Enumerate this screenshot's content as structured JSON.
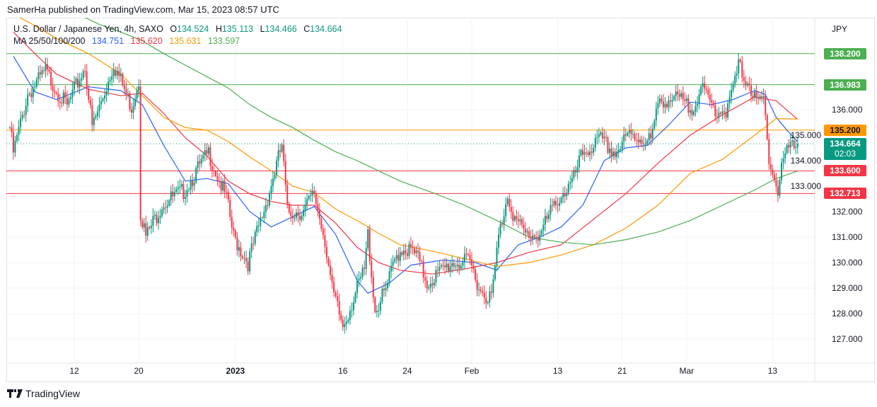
{
  "header": {
    "published": "SamerHa published on TradingView.com, Mar 15, 2023 08:57 UTC"
  },
  "legend": {
    "symbol": "U.S. Dollar / Japanese Yen, 4h, SAXO",
    "open_label": "O",
    "open": "134.524",
    "high_label": "H",
    "high": "135.113",
    "low_label": "L",
    "low": "134.466",
    "close_label": "C",
    "close": "134.664",
    "ma_label": "MA 25/50/100/200",
    "ma_values": [
      "134.751",
      "135.620",
      "135.631",
      "133.597"
    ]
  },
  "footer": {
    "brand": "TradingView"
  },
  "colors": {
    "up": "#089981",
    "down": "#F23645",
    "ma25": "#2962FF",
    "ma50": "#F23645",
    "ma100": "#FF9800",
    "ma200": "#4CAF50",
    "grid": "#f0f3fa"
  },
  "chart_data": {
    "type": "candlestick",
    "title": "U.S. Dollar / Japanese Yen, 4h, SAXO",
    "currency_label": "JPY",
    "ylim": [
      126.3,
      139.7
    ],
    "y_ticks": [
      "127.000",
      "128.000",
      "129.000",
      "130.000",
      "131.000",
      "132.000",
      "133.000",
      "134.000",
      "135.000",
      "136.000"
    ],
    "x_ticks": [
      {
        "label": "12",
        "date": "2022-12-12"
      },
      {
        "label": "20",
        "date": "2022-12-20"
      },
      {
        "label": "2023",
        "date": "2023-01-02"
      },
      {
        "label": "16",
        "date": "2023-01-16"
      },
      {
        "label": "24",
        "date": "2023-01-24"
      },
      {
        "label": "Feb",
        "date": "2023-02-01"
      },
      {
        "label": "13",
        "date": "2023-02-13"
      },
      {
        "label": "21",
        "date": "2023-02-21"
      },
      {
        "label": "Mar",
        "date": "2023-03-01"
      },
      {
        "label": "13",
        "date": "2023-03-13"
      }
    ],
    "grid": true,
    "price_path": [
      [
        "2022-12-02T00",
        135.3
      ],
      [
        "2022-12-02T08",
        134.3
      ],
      [
        "2022-12-05T16",
        136.6
      ],
      [
        "2022-12-07T08",
        137.5
      ],
      [
        "2022-12-09T08",
        136.1
      ],
      [
        "2022-12-13T00",
        137.7
      ],
      [
        "2022-12-13T16",
        135.3
      ],
      [
        "2022-12-14T16",
        136.5
      ],
      [
        "2022-12-15T16",
        137.8
      ],
      [
        "2022-12-19T08",
        136.1
      ],
      [
        "2022-12-20T00",
        137.2
      ],
      [
        "2022-12-20T04",
        132.0
      ],
      [
        "2022-12-20T16",
        131.0
      ],
      [
        "2022-12-22T04",
        132.3
      ],
      [
        "2022-12-26T04",
        132.8
      ],
      [
        "2022-12-28T12",
        134.3
      ],
      [
        "2022-12-30T04",
        132.5
      ],
      [
        "2022-12-30T20",
        131.0
      ],
      [
        "2023-01-03T04",
        130.0
      ],
      [
        "2023-01-04T20",
        132.3
      ],
      [
        "2023-01-06T08",
        134.6
      ],
      [
        "2023-01-06T20",
        132.0
      ],
      [
        "2023-01-10T08",
        132.0
      ],
      [
        "2023-01-11T08",
        132.7
      ],
      [
        "2023-01-12T08",
        130.9
      ],
      [
        "2023-01-13T00",
        128.9
      ],
      [
        "2023-01-16T00",
        127.5
      ],
      [
        "2023-01-17T00",
        128.6
      ],
      [
        "2023-01-18T00",
        129.7
      ],
      [
        "2023-01-18T08",
        131.1
      ],
      [
        "2023-01-19T00",
        128.1
      ],
      [
        "2023-01-20T00",
        128.9
      ],
      [
        "2023-01-23T00",
        130.3
      ],
      [
        "2023-01-23T16",
        130.6
      ],
      [
        "2023-01-24T20",
        130.3
      ],
      [
        "2023-01-25T20",
        129.2
      ],
      [
        "2023-01-30T04",
        130.0
      ],
      [
        "2023-01-31T20",
        130.0
      ],
      [
        "2023-02-01T20",
        128.9
      ],
      [
        "2023-02-02T20",
        128.6
      ],
      [
        "2023-02-03T12",
        131.0
      ],
      [
        "2023-02-06T08",
        132.7
      ],
      [
        "2023-02-07T00",
        131.7
      ],
      [
        "2023-02-08T00",
        131.1
      ],
      [
        "2023-02-09T08",
        131.1
      ],
      [
        "2023-02-13T00",
        132.5
      ],
      [
        "2023-02-14T08",
        133.1
      ],
      [
        "2023-02-15T08",
        134.3
      ],
      [
        "2023-02-17T00",
        134.8
      ],
      [
        "2023-02-20T08",
        134.3
      ],
      [
        "2023-02-21T16",
        135.0
      ],
      [
        "2023-02-23T16",
        134.8
      ],
      [
        "2023-02-24T12",
        136.4
      ],
      [
        "2023-02-28T08",
        136.4
      ],
      [
        "2023-03-01T08",
        136.0
      ],
      [
        "2023-03-02T08",
        136.8
      ],
      [
        "2023-03-03T16",
        136.0
      ],
      [
        "2023-03-06T20",
        136.0
      ],
      [
        "2023-03-07T20",
        137.7
      ],
      [
        "2023-03-08T20",
        137.0
      ],
      [
        "2023-03-09T12",
        136.2
      ],
      [
        "2023-03-10T04",
        136.4
      ],
      [
        "2023-03-10T16",
        134.2
      ],
      [
        "2023-03-13T00",
        133.6
      ],
      [
        "2023-03-13T12",
        132.7
      ],
      [
        "2023-03-13T20",
        133.9
      ],
      [
        "2023-03-14T12",
        134.5
      ],
      [
        "2023-03-15T08",
        134.664
      ]
    ],
    "moving_averages": [
      {
        "name": "MA 25",
        "color": "#2962FF",
        "points": [
          [
            "2022-12-02",
            138.1
          ],
          [
            "2022-12-06",
            136.7
          ],
          [
            "2022-12-08",
            136.4
          ],
          [
            "2022-12-13",
            136.9
          ],
          [
            "2022-12-16",
            136.75
          ],
          [
            "2022-12-20",
            136.2
          ],
          [
            "2022-12-22",
            134.6
          ],
          [
            "2022-12-26",
            133.2
          ],
          [
            "2022-12-28",
            133.3
          ],
          [
            "2022-12-30",
            133.1
          ],
          [
            "2023-01-03",
            132.0
          ],
          [
            "2023-01-05",
            131.4
          ],
          [
            "2023-01-09",
            131.8
          ],
          [
            "2023-01-11",
            132.2
          ],
          [
            "2023-01-13",
            131.1
          ],
          [
            "2023-01-17",
            129.3
          ],
          [
            "2023-01-18",
            128.8
          ],
          [
            "2023-01-20",
            129.2
          ],
          [
            "2023-01-24",
            129.9
          ],
          [
            "2023-01-27",
            130.1
          ],
          [
            "2023-02-01",
            130.0
          ],
          [
            "2023-02-03",
            129.7
          ],
          [
            "2023-02-07",
            130.7
          ],
          [
            "2023-02-09",
            131.0
          ],
          [
            "2023-02-13",
            131.4
          ],
          [
            "2023-02-15",
            132.25
          ],
          [
            "2023-02-17",
            134.0
          ],
          [
            "2023-02-21",
            134.5
          ],
          [
            "2023-02-23",
            134.6
          ],
          [
            "2023-02-27",
            135.4
          ],
          [
            "2023-03-01",
            136.3
          ],
          [
            "2023-03-03",
            136.2
          ],
          [
            "2023-03-07",
            136.4
          ],
          [
            "2023-03-09",
            136.75
          ],
          [
            "2023-03-10",
            136.6
          ],
          [
            "2023-03-13",
            135.7
          ],
          [
            "2023-03-14",
            135.2
          ],
          [
            "2023-03-15",
            134.751
          ]
        ]
      },
      {
        "name": "MA 50",
        "color": "#F23645",
        "points": [
          [
            "2022-12-02",
            139.05
          ],
          [
            "2022-12-06",
            138.2
          ],
          [
            "2022-12-08",
            137.4
          ],
          [
            "2022-12-13",
            136.8
          ],
          [
            "2022-12-16",
            136.55
          ],
          [
            "2022-12-20",
            136.65
          ],
          [
            "2022-12-22",
            135.85
          ],
          [
            "2022-12-26",
            134.9
          ],
          [
            "2022-12-28",
            134.2
          ],
          [
            "2022-12-30",
            133.2
          ],
          [
            "2023-01-03",
            132.7
          ],
          [
            "2023-01-05",
            132.4
          ],
          [
            "2023-01-09",
            132.25
          ],
          [
            "2023-01-11",
            132.25
          ],
          [
            "2023-01-13",
            131.55
          ],
          [
            "2023-01-17",
            130.6
          ],
          [
            "2023-01-19",
            130.0
          ],
          [
            "2023-01-23",
            129.7
          ],
          [
            "2023-01-26",
            129.55
          ],
          [
            "2023-01-31",
            129.75
          ],
          [
            "2023-02-03",
            130.0
          ],
          [
            "2023-02-08",
            130.4
          ],
          [
            "2023-02-13",
            130.7
          ],
          [
            "2023-02-16",
            131.7
          ],
          [
            "2023-02-21",
            132.7
          ],
          [
            "2023-02-24",
            133.9
          ],
          [
            "2023-03-01",
            135.0
          ],
          [
            "2023-03-06",
            135.8
          ],
          [
            "2023-03-09",
            136.5
          ],
          [
            "2023-03-13",
            136.35
          ],
          [
            "2023-03-15",
            135.62
          ]
        ]
      },
      {
        "name": "MA 100",
        "color": "#FF9800",
        "points": [
          [
            "2022-12-02",
            139.75
          ],
          [
            "2022-12-06",
            139.3
          ],
          [
            "2022-12-08",
            138.8
          ],
          [
            "2022-12-13",
            138.2
          ],
          [
            "2022-12-16",
            137.4
          ],
          [
            "2022-12-20",
            136.55
          ],
          [
            "2022-12-22",
            135.7
          ],
          [
            "2022-12-26",
            135.3
          ],
          [
            "2022-12-28",
            135.2
          ],
          [
            "2022-12-30",
            134.75
          ],
          [
            "2023-01-03",
            134.15
          ],
          [
            "2023-01-05",
            133.6
          ],
          [
            "2023-01-09",
            133.0
          ],
          [
            "2023-01-11",
            132.75
          ],
          [
            "2023-01-13",
            132.1
          ],
          [
            "2023-01-17",
            131.65
          ],
          [
            "2023-01-19",
            131.15
          ],
          [
            "2023-01-23",
            130.7
          ],
          [
            "2023-01-26",
            130.45
          ],
          [
            "2023-01-31",
            130.15
          ],
          [
            "2023-02-03",
            129.85
          ],
          [
            "2023-02-08",
            130.0
          ],
          [
            "2023-02-13",
            130.3
          ],
          [
            "2023-02-16",
            130.7
          ],
          [
            "2023-02-21",
            131.35
          ],
          [
            "2023-02-24",
            132.25
          ],
          [
            "2023-03-01",
            133.5
          ],
          [
            "2023-03-06",
            134.05
          ],
          [
            "2023-03-09",
            135.0
          ],
          [
            "2023-03-13",
            135.65
          ],
          [
            "2023-03-15",
            135.631
          ]
        ]
      },
      {
        "name": "MA 200",
        "color": "#4CAF50",
        "points": [
          [
            "2022-12-12",
            139.75
          ],
          [
            "2022-12-14",
            139.35
          ],
          [
            "2022-12-16",
            139.05
          ],
          [
            "2022-12-20",
            138.7
          ],
          [
            "2022-12-22",
            138.2
          ],
          [
            "2022-12-26",
            137.75
          ],
          [
            "2022-12-28",
            137.3
          ],
          [
            "2022-12-30",
            136.85
          ],
          [
            "2023-01-03",
            136.2
          ],
          [
            "2023-01-05",
            135.7
          ],
          [
            "2023-01-09",
            135.3
          ],
          [
            "2023-01-11",
            134.8
          ],
          [
            "2023-01-13",
            134.35
          ],
          [
            "2023-01-17",
            134.0
          ],
          [
            "2023-01-19",
            133.6
          ],
          [
            "2023-01-23",
            133.2
          ],
          [
            "2023-01-26",
            132.75
          ],
          [
            "2023-01-31",
            132.25
          ],
          [
            "2023-02-03",
            131.65
          ],
          [
            "2023-02-08",
            131.0
          ],
          [
            "2023-02-13",
            130.8
          ],
          [
            "2023-02-16",
            130.7
          ],
          [
            "2023-02-21",
            130.9
          ],
          [
            "2023-02-24",
            131.2
          ],
          [
            "2023-03-01",
            131.65
          ],
          [
            "2023-03-06",
            132.25
          ],
          [
            "2023-03-09",
            132.85
          ],
          [
            "2023-03-13",
            133.3
          ],
          [
            "2023-03-15",
            133.597
          ]
        ]
      }
    ],
    "horizontal_levels": [
      {
        "price": "138.200",
        "color": "#4CAF50",
        "text_color": "#ffffff"
      },
      {
        "price": "136.983",
        "color": "#4CAF50",
        "text_color": "#ffffff"
      },
      {
        "price": "135.200",
        "color": "#FF9800",
        "text_color": "#131722"
      },
      {
        "price": "133.600",
        "color": "#F23645",
        "text_color": "#ffffff"
      },
      {
        "price": "132.713",
        "color": "#F23645",
        "text_color": "#ffffff"
      }
    ],
    "last_price": {
      "price": "134.664",
      "countdown": "02:03",
      "color": "#089981"
    }
  }
}
